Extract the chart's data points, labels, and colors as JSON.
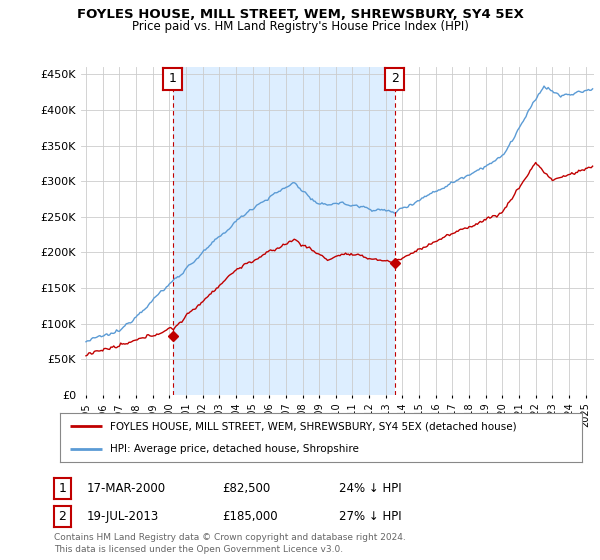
{
  "title": "FOYLES HOUSE, MILL STREET, WEM, SHREWSBURY, SY4 5EX",
  "subtitle": "Price paid vs. HM Land Registry's House Price Index (HPI)",
  "legend_line1": "FOYLES HOUSE, MILL STREET, WEM, SHREWSBURY, SY4 5EX (detached house)",
  "legend_line2": "HPI: Average price, detached house, Shropshire",
  "footnote": "Contains HM Land Registry data © Crown copyright and database right 2024.\nThis data is licensed under the Open Government Licence v3.0.",
  "annotation1_label": "1",
  "annotation1_date": "17-MAR-2000",
  "annotation1_price": "£82,500",
  "annotation1_hpi": "24% ↓ HPI",
  "annotation2_label": "2",
  "annotation2_date": "19-JUL-2013",
  "annotation2_price": "£185,000",
  "annotation2_hpi": "27% ↓ HPI",
  "hpi_color": "#5b9bd5",
  "price_color": "#c00000",
  "annotation_color": "#c00000",
  "shade_color": "#ddeeff",
  "background_color": "#ffffff",
  "grid_color": "#cccccc",
  "ylim": [
    0,
    460000
  ],
  "yticks": [
    0,
    50000,
    100000,
    150000,
    200000,
    250000,
    300000,
    350000,
    400000,
    450000
  ],
  "xlim_start": 1994.7,
  "xlim_end": 2025.5,
  "t1_year": 2000.21,
  "p1": 82500,
  "t2_year": 2013.54,
  "p2": 185000
}
